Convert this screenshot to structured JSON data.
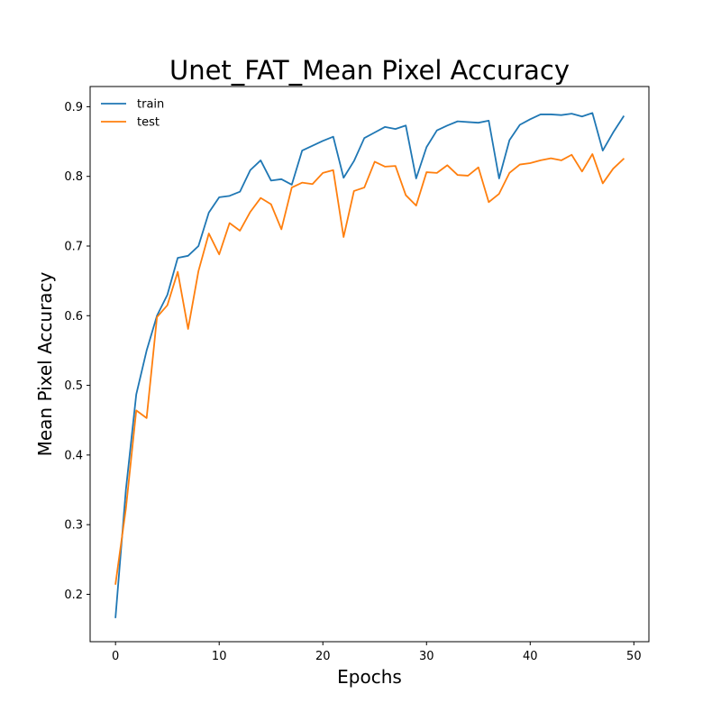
{
  "chart_data": {
    "type": "line",
    "title": "Unet_FAT_Mean Pixel Accuracy",
    "xlabel": "Epochs",
    "ylabel": "Mean Pixel Accuracy",
    "xlim": [
      -2.45,
      51.45
    ],
    "ylim": [
      0.132,
      0.929
    ],
    "xticks": [
      0,
      10,
      20,
      30,
      40,
      50
    ],
    "yticks": [
      0.2,
      0.3,
      0.4,
      0.5,
      0.6,
      0.7,
      0.8,
      0.9
    ],
    "grid": false,
    "legend": {
      "position": "top-left"
    },
    "x": [
      0,
      1,
      2,
      3,
      4,
      5,
      6,
      7,
      8,
      9,
      10,
      11,
      12,
      13,
      14,
      15,
      16,
      17,
      18,
      19,
      20,
      21,
      22,
      23,
      24,
      25,
      26,
      27,
      28,
      29,
      30,
      31,
      32,
      33,
      34,
      35,
      36,
      37,
      38,
      39,
      40,
      41,
      42,
      43,
      44,
      45,
      46,
      47,
      48,
      49
    ],
    "series": [
      {
        "name": "train",
        "color": "#1f77b4",
        "values": [
          0.167,
          0.35,
          0.487,
          0.55,
          0.6,
          0.63,
          0.683,
          0.686,
          0.7,
          0.748,
          0.77,
          0.772,
          0.778,
          0.809,
          0.823,
          0.794,
          0.796,
          0.788,
          0.837,
          0.844,
          0.851,
          0.857,
          0.798,
          0.822,
          0.855,
          0.863,
          0.871,
          0.868,
          0.873,
          0.797,
          0.842,
          0.866,
          0.873,
          0.879,
          0.878,
          0.877,
          0.88,
          0.797,
          0.852,
          0.874,
          0.882,
          0.889,
          0.889,
          0.888,
          0.89,
          0.886,
          0.891,
          0.837,
          0.863,
          0.886
        ]
      },
      {
        "name": "test",
        "color": "#ff7f0e",
        "values": [
          0.215,
          0.323,
          0.464,
          0.453,
          0.598,
          0.615,
          0.663,
          0.581,
          0.664,
          0.718,
          0.688,
          0.733,
          0.722,
          0.749,
          0.769,
          0.76,
          0.724,
          0.784,
          0.791,
          0.789,
          0.805,
          0.809,
          0.713,
          0.779,
          0.784,
          0.821,
          0.814,
          0.815,
          0.773,
          0.758,
          0.806,
          0.805,
          0.816,
          0.802,
          0.801,
          0.813,
          0.763,
          0.775,
          0.805,
          0.817,
          0.819,
          0.823,
          0.826,
          0.823,
          0.831,
          0.807,
          0.832,
          0.79,
          0.811,
          0.825
        ]
      }
    ]
  }
}
